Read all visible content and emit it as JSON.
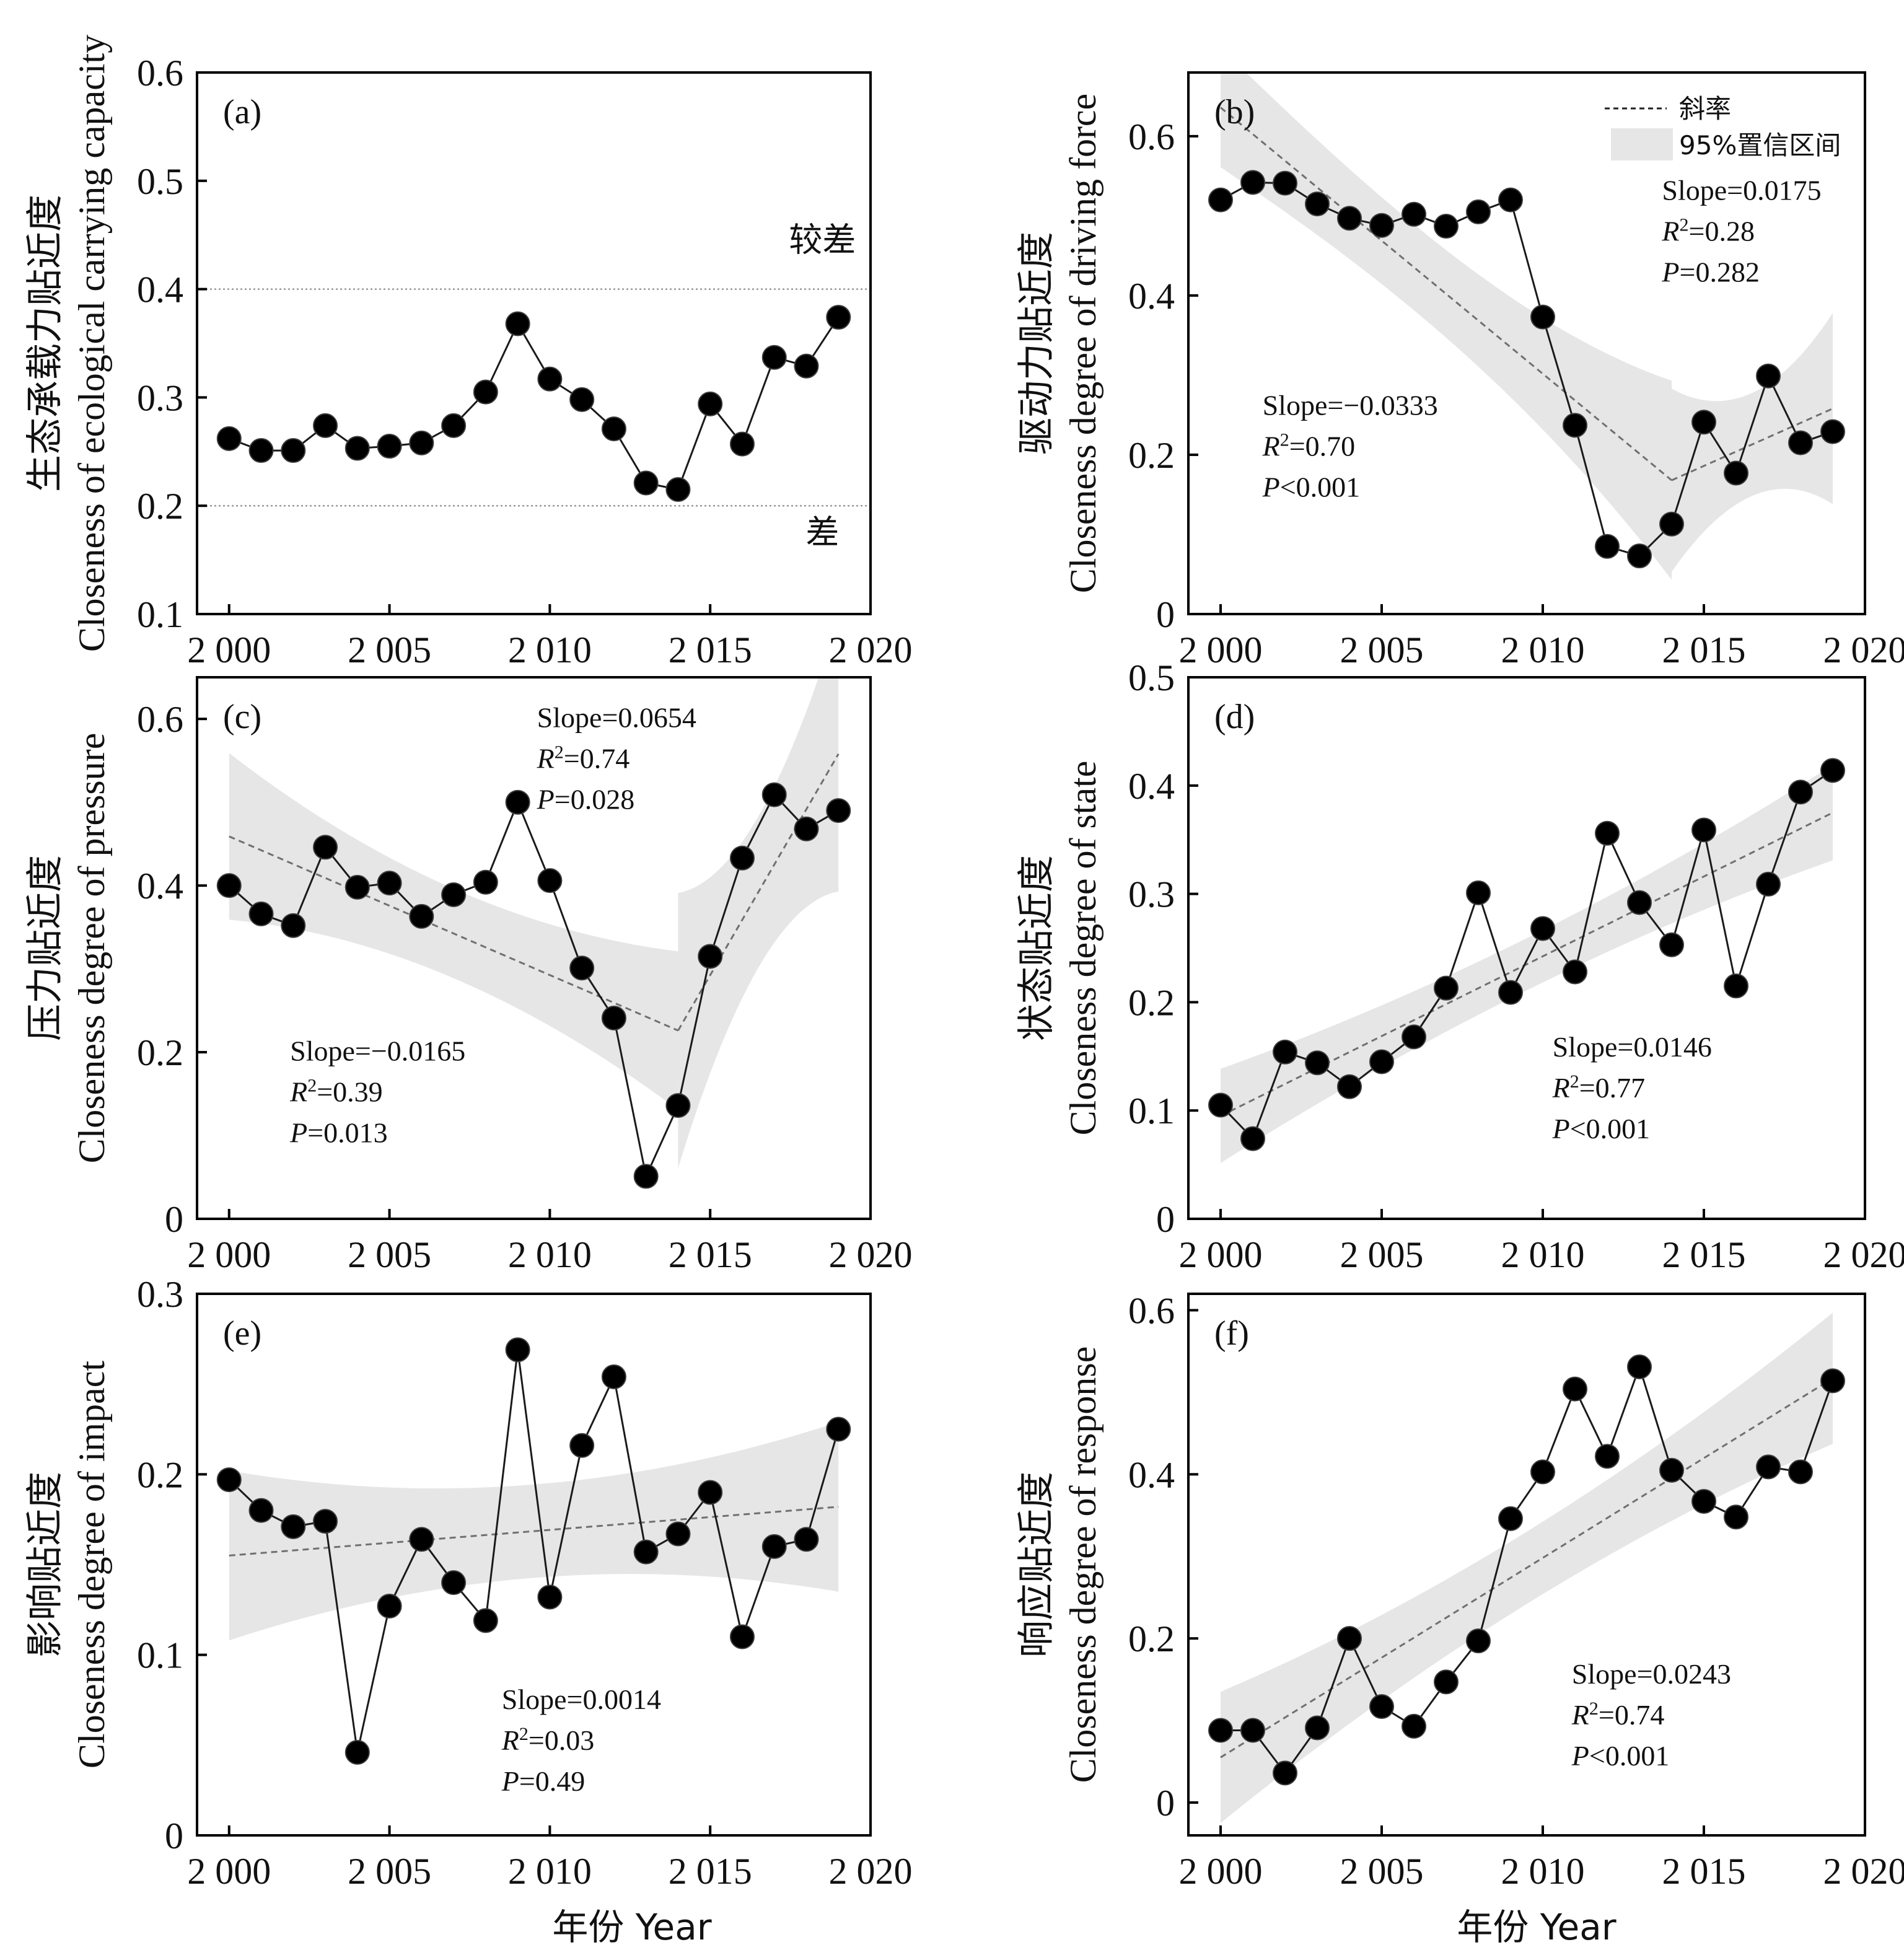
{
  "figure": {
    "x_axis_label": "年份 Year",
    "legend": {
      "trend": "斜率",
      "band": "95%置信区间"
    },
    "colors": {
      "band": "#e6e6e6",
      "marker": "#000000",
      "trend": "#707070",
      "axis": "#000000"
    }
  },
  "chart_data": [
    {
      "type": "line",
      "id": "a",
      "panel_label": "(a)",
      "ylabel_cn": "生态承载力贴近度",
      "ylabel_en": "Closeness of ecological carrying capacity",
      "xlim": [
        1999,
        2020
      ],
      "ylim": [
        0.1,
        0.6
      ],
      "xticks": [
        2000,
        2005,
        2010,
        2015,
        2020
      ],
      "xtick_labels": [
        "2 000",
        "2 005",
        "2 010",
        "2 015",
        "2 020"
      ],
      "yticks": [
        0.1,
        0.2,
        0.3,
        0.4,
        0.5,
        0.6
      ],
      "ytick_labels": [
        "0.1",
        "0.2",
        "0.3",
        "0.4",
        "0.5",
        "0.6"
      ],
      "x": [
        2000,
        2001,
        2002,
        2003,
        2004,
        2005,
        2006,
        2007,
        2008,
        2009,
        2010,
        2011,
        2012,
        2013,
        2014,
        2015,
        2016,
        2017,
        2018,
        2019
      ],
      "values": [
        0.262,
        0.251,
        0.251,
        0.274,
        0.253,
        0.255,
        0.258,
        0.274,
        0.305,
        0.368,
        0.317,
        0.298,
        0.271,
        0.221,
        0.215,
        0.294,
        0.257,
        0.337,
        0.329,
        0.374
      ],
      "hlines": [
        0.4,
        0.2
      ],
      "zone_labels": [
        {
          "text": "较差",
          "x": 2018.5,
          "y": 0.435
        },
        {
          "text": "差",
          "x": 2018.5,
          "y": 0.165
        }
      ],
      "fits": [],
      "annotations": []
    },
    {
      "type": "line",
      "id": "b",
      "panel_label": "(b)",
      "ylabel_cn": "驱动力贴近度",
      "ylabel_en": "Closeness degree of driving force",
      "xlim": [
        1999,
        2020
      ],
      "ylim": [
        0,
        0.68
      ],
      "xticks": [
        2000,
        2005,
        2010,
        2015,
        2020
      ],
      "xtick_labels": [
        "2 000",
        "2 005",
        "2 010",
        "2 015",
        "2 020"
      ],
      "yticks": [
        0,
        0.2,
        0.4,
        0.6
      ],
      "ytick_labels": [
        "0",
        "0.2",
        "0.4",
        "0.6"
      ],
      "x": [
        2000,
        2001,
        2002,
        2003,
        2004,
        2005,
        2006,
        2007,
        2008,
        2009,
        2010,
        2011,
        2012,
        2013,
        2014,
        2015,
        2016,
        2017,
        2018,
        2019
      ],
      "values": [
        0.52,
        0.542,
        0.541,
        0.515,
        0.497,
        0.488,
        0.502,
        0.487,
        0.505,
        0.52,
        0.373,
        0.237,
        0.085,
        0.073,
        0.113,
        0.241,
        0.177,
        0.299,
        0.215,
        0.229
      ],
      "has_legend": true,
      "fits": [
        {
          "x": [
            2000,
            2014
          ],
          "y": [
            0.636,
            0.168
          ],
          "band_lo": [
            0.55,
            0.05
          ],
          "band_hi": [
            0.7,
            0.3
          ]
        },
        {
          "x": [
            2014,
            2019
          ],
          "y": [
            0.168,
            0.258
          ],
          "band_lo": [
            0.05,
            0.14
          ],
          "band_hi": [
            0.28,
            0.38
          ]
        }
      ],
      "annotations": [
        {
          "lines": [
            "Slope=0.0175",
            "R²=0.28",
            "P=0.282"
          ],
          "x": 2013.7,
          "y": 0.52
        },
        {
          "lines": [
            "Slope=−0.0333",
            "R²=0.70",
            "P<0.001"
          ],
          "x": 2001.3,
          "y": 0.25
        }
      ]
    },
    {
      "type": "line",
      "id": "c",
      "panel_label": "(c)",
      "ylabel_cn": "压力贴近度",
      "ylabel_en": "Closeness degree of pressure",
      "xlim": [
        1999,
        2020
      ],
      "ylim": [
        0,
        0.65
      ],
      "xticks": [
        2000,
        2005,
        2010,
        2015,
        2020
      ],
      "xtick_labels": [
        "2 000",
        "2 005",
        "2 010",
        "2 015",
        "2 020"
      ],
      "yticks": [
        0,
        0.2,
        0.4,
        0.6
      ],
      "ytick_labels": [
        "0",
        "0.2",
        "0.4",
        "0.6"
      ],
      "x": [
        2000,
        2001,
        2002,
        2003,
        2004,
        2005,
        2006,
        2007,
        2008,
        2009,
        2010,
        2011,
        2012,
        2013,
        2014,
        2015,
        2016,
        2017,
        2018,
        2019
      ],
      "values": [
        0.4,
        0.366,
        0.352,
        0.446,
        0.398,
        0.403,
        0.363,
        0.389,
        0.404,
        0.5,
        0.406,
        0.301,
        0.241,
        0.051,
        0.136,
        0.315,
        0.433,
        0.509,
        0.468,
        0.49
      ],
      "fits": [
        {
          "x": [
            2000,
            2014
          ],
          "y": [
            0.459,
            0.226
          ],
          "band_lo": [
            0.36,
            0.14
          ],
          "band_hi": [
            0.56,
            0.33
          ]
        },
        {
          "x": [
            2014,
            2019
          ],
          "y": [
            0.226,
            0.558
          ],
          "band_lo": [
            0.06,
            0.39
          ],
          "band_hi": [
            0.39,
            0.72
          ]
        }
      ],
      "annotations": [
        {
          "lines": [
            "Slope=0.0654",
            "R²=0.74",
            "P=0.028"
          ],
          "x": 2009.6,
          "y": 0.59
        },
        {
          "lines": [
            "Slope=−0.0165",
            "R²=0.39",
            "P=0.013"
          ],
          "x": 2001.9,
          "y": 0.19
        }
      ]
    },
    {
      "type": "line",
      "id": "d",
      "panel_label": "(d)",
      "ylabel_cn": "状态贴近度",
      "ylabel_en": "Closeness degree of state",
      "xlim": [
        1999,
        2020
      ],
      "ylim": [
        0,
        0.5
      ],
      "xticks": [
        2000,
        2005,
        2010,
        2015,
        2020
      ],
      "xtick_labels": [
        "2 000",
        "2 005",
        "2 010",
        "2 015",
        "2 020"
      ],
      "yticks": [
        0,
        0.1,
        0.2,
        0.3,
        0.4,
        0.5
      ],
      "ytick_labels": [
        "0",
        "0.1",
        "0.2",
        "0.3",
        "0.4",
        "0.5"
      ],
      "x": [
        2000,
        2001,
        2002,
        2003,
        2004,
        2005,
        2006,
        2007,
        2008,
        2009,
        2010,
        2011,
        2012,
        2013,
        2014,
        2015,
        2016,
        2017,
        2018,
        2019
      ],
      "values": [
        0.105,
        0.074,
        0.154,
        0.144,
        0.122,
        0.145,
        0.168,
        0.213,
        0.301,
        0.209,
        0.268,
        0.228,
        0.356,
        0.292,
        0.253,
        0.359,
        0.215,
        0.309,
        0.394,
        0.414
      ],
      "fits": [
        {
          "x": [
            2000,
            2019
          ],
          "y": [
            0.095,
            0.375
          ],
          "band_lo": [
            0.053,
            0.332
          ],
          "band_hi": [
            0.14,
            0.42
          ]
        }
      ],
      "annotations": [
        {
          "lines": [
            "Slope=0.0146",
            "R²=0.77",
            "P<0.001"
          ],
          "x": 2010.3,
          "y": 0.15
        }
      ]
    },
    {
      "type": "line",
      "id": "e",
      "panel_label": "(e)",
      "ylabel_cn": "影响贴近度",
      "ylabel_en": "Closeness degree of impact",
      "xlim": [
        1999,
        2020
      ],
      "ylim": [
        0,
        0.3
      ],
      "xticks": [
        2000,
        2005,
        2010,
        2015,
        2020
      ],
      "xtick_labels": [
        "2 000",
        "2 005",
        "2 010",
        "2 015",
        "2 020"
      ],
      "yticks": [
        0,
        0.1,
        0.2,
        0.3
      ],
      "ytick_labels": [
        "0",
        "0.1",
        "0.2",
        "0.3"
      ],
      "x": [
        2000,
        2001,
        2002,
        2003,
        2004,
        2005,
        2006,
        2007,
        2008,
        2009,
        2010,
        2011,
        2012,
        2013,
        2014,
        2015,
        2016,
        2017,
        2018,
        2019
      ],
      "values": [
        0.197,
        0.18,
        0.171,
        0.174,
        0.046,
        0.127,
        0.164,
        0.14,
        0.119,
        0.269,
        0.132,
        0.216,
        0.254,
        0.157,
        0.167,
        0.19,
        0.11,
        0.16,
        0.164,
        0.225
      ],
      "fits": [
        {
          "x": [
            2000,
            2019
          ],
          "y": [
            0.155,
            0.182
          ],
          "band_lo": [
            0.108,
            0.135
          ],
          "band_hi": [
            0.202,
            0.229
          ]
        }
      ],
      "annotations": [
        {
          "lines": [
            "Slope=0.0014",
            "R²=0.03",
            "P=0.49"
          ],
          "x": 2008.5,
          "y": 0.07
        }
      ]
    },
    {
      "type": "line",
      "id": "f",
      "panel_label": "(f)",
      "ylabel_cn": "响应贴近度",
      "ylabel_en": "Closeness degree of response",
      "xlim": [
        1999,
        2020
      ],
      "ylim": [
        -0.04,
        0.62
      ],
      "xticks": [
        2000,
        2005,
        2010,
        2015,
        2020
      ],
      "xtick_labels": [
        "2 000",
        "2 005",
        "2 010",
        "2 015",
        "2 020"
      ],
      "yticks": [
        0,
        0.2,
        0.4,
        0.6
      ],
      "ytick_labels": [
        "0",
        "0.2",
        "0.4",
        "0.6"
      ],
      "x": [
        2000,
        2001,
        2002,
        2003,
        2004,
        2005,
        2006,
        2007,
        2008,
        2009,
        2010,
        2011,
        2012,
        2013,
        2014,
        2015,
        2016,
        2017,
        2018,
        2019
      ],
      "values": [
        0.088,
        0.088,
        0.036,
        0.091,
        0.2,
        0.117,
        0.093,
        0.147,
        0.197,
        0.346,
        0.403,
        0.504,
        0.422,
        0.531,
        0.405,
        0.367,
        0.348,
        0.409,
        0.403,
        0.514
      ],
      "fits": [
        {
          "x": [
            2000,
            2019
          ],
          "y": [
            0.055,
            0.517
          ],
          "band_lo": [
            -0.025,
            0.437
          ],
          "band_hi": [
            0.135,
            0.597
          ]
        }
      ],
      "annotations": [
        {
          "lines": [
            "Slope=0.0243",
            "R²=0.74",
            "P<0.001"
          ],
          "x": 2010.9,
          "y": 0.145
        }
      ]
    }
  ]
}
